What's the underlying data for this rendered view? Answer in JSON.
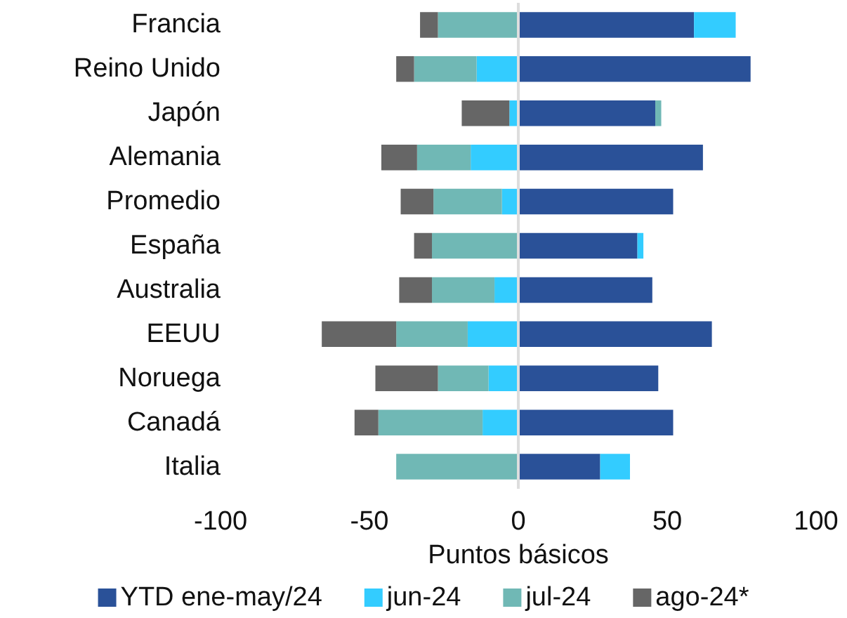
{
  "chart_data": {
    "type": "bar",
    "orientation": "horizontal",
    "stacked": true,
    "xlabel": "Puntos básicos",
    "categories": [
      "Francia",
      "Reino Unido",
      "Japón",
      "Alemania",
      "Promedio",
      "España",
      "Australia",
      "EEUU",
      "Noruega",
      "Canadá",
      "Italia"
    ],
    "series": [
      {
        "name": "YTD ene-may/24",
        "color": "#2a5198",
        "values": [
          59,
          78,
          46,
          62,
          52,
          40,
          45,
          65,
          47,
          52,
          27.5
        ]
      },
      {
        "name": "jun-24",
        "color": "#33ccff",
        "values": [
          14,
          -14,
          -3,
          -16,
          -5.5,
          2,
          -8,
          -17,
          -10,
          -12,
          10
        ]
      },
      {
        "name": "jul-24",
        "color": "#70b8b5",
        "values": [
          -27,
          -21,
          2,
          -18,
          -23,
          -29,
          -21,
          -24,
          -17,
          -35,
          -41
        ]
      },
      {
        "name": "ago-24*",
        "color": "#666666",
        "values": [
          -6,
          -6,
          -16,
          -12,
          -11,
          -6,
          -11,
          -25,
          -21,
          -8,
          null
        ]
      }
    ],
    "xlim": [
      -100,
      100
    ],
    "xticks": [
      -100,
      -50,
      0,
      50,
      100
    ],
    "grid": false,
    "legend": "bottom",
    "ref_lines": [
      {
        "axis": "x",
        "value": 0,
        "color": "#dddddd"
      }
    ]
  }
}
